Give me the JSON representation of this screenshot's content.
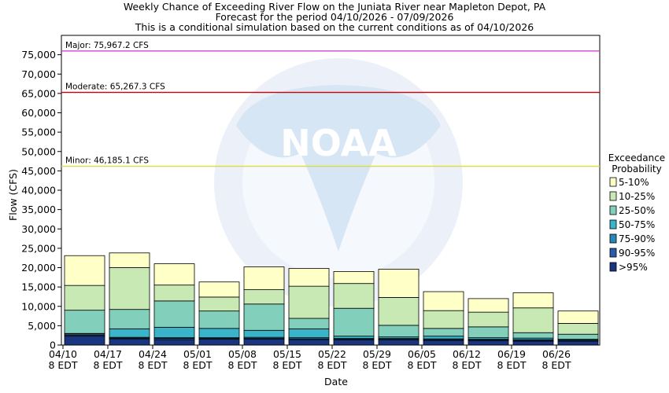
{
  "chart_data": {
    "type": "bar",
    "stacked": true,
    "title": [
      "Weekly Chance of Exceeding River Flow on the Juniata River near Mapleton Depot, PA",
      "Forecast for the period 04/10/2026 - 07/09/2026",
      "This is a conditional simulation based on the current conditions as of 04/10/2026"
    ],
    "xlabel": "Date",
    "ylabel": "Flow (CFS)",
    "ylim": [
      0,
      80000
    ],
    "yticks": [
      "0",
      "5,000",
      "10,000",
      "15,000",
      "20,000",
      "25,000",
      "30,000",
      "35,000",
      "40,000",
      "45,000",
      "50,000",
      "55,000",
      "60,000",
      "65,000",
      "70,000",
      "75,000"
    ],
    "x_ticks": [
      {
        "line1": "04/10",
        "line2": "8 EDT"
      },
      {
        "line1": "04/17",
        "line2": "8 EDT"
      },
      {
        "line1": "04/24",
        "line2": "8 EDT"
      },
      {
        "line1": "05/01",
        "line2": "8 EDT"
      },
      {
        "line1": "05/08",
        "line2": "8 EDT"
      },
      {
        "line1": "05/15",
        "line2": "8 EDT"
      },
      {
        "line1": "05/22",
        "line2": "8 EDT"
      },
      {
        "line1": "05/29",
        "line2": "8 EDT"
      },
      {
        "line1": "06/05",
        "line2": "8 EDT"
      },
      {
        "line1": "06/12",
        "line2": "8 EDT"
      },
      {
        "line1": "06/19",
        "line2": "8 EDT"
      },
      {
        "line1": "06/26",
        "line2": "8 EDT"
      }
    ],
    "thresholds": [
      {
        "label": "Major: 75,967.2 CFS",
        "value": 75967.2,
        "color": "#cc33cc"
      },
      {
        "label": "Moderate: 65,267.3 CFS",
        "value": 65267.3,
        "color": "#cc0000"
      },
      {
        "label": "Minor: 46,185.1 CFS",
        "value": 46185.1,
        "color": "#dddd33"
      }
    ],
    "legend": {
      "title": [
        "Exceedance",
        "Probability"
      ],
      "placement": "right"
    },
    "series": [
      {
        "name": ">95%",
        "color": "#1a3580",
        "tops": [
          2300,
          1600,
          1400,
          1500,
          1500,
          1400,
          1300,
          1300,
          1200,
          1100,
          1000,
          1000
        ]
      },
      {
        "name": "90-95%",
        "color": "#2a5aa8",
        "tops": [
          2600,
          1800,
          1700,
          1700,
          1700,
          1600,
          1500,
          1500,
          1400,
          1300,
          1200,
          1100
        ]
      },
      {
        "name": "75-90%",
        "color": "#2a88b8",
        "tops": [
          2900,
          2000,
          1900,
          1900,
          2000,
          1900,
          1700,
          1700,
          1600,
          1500,
          1400,
          1300
        ]
      },
      {
        "name": "50-75%",
        "color": "#3ab4c8",
        "tops": [
          3000,
          4200,
          4600,
          4300,
          3800,
          4200,
          2300,
          2100,
          2300,
          1900,
          1800,
          1500
        ]
      },
      {
        "name": "25-50%",
        "color": "#82d0bc",
        "tops": [
          9000,
          9200,
          11400,
          8800,
          10600,
          6900,
          9500,
          5100,
          4300,
          4700,
          3200,
          2800
        ]
      },
      {
        "name": "10-25%",
        "color": "#c8e8b4",
        "tops": [
          15400,
          20000,
          15500,
          12400,
          14300,
          15200,
          15900,
          12300,
          8900,
          8500,
          9600,
          5600
        ]
      },
      {
        "name": "5-10%",
        "color": "#ffffc8",
        "tops": [
          23100,
          23800,
          21000,
          16300,
          20200,
          19800,
          19000,
          19600,
          13800,
          12000,
          13500,
          8800
        ]
      }
    ]
  }
}
